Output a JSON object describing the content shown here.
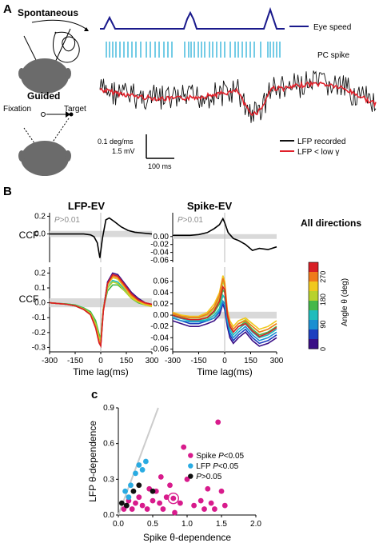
{
  "panel_labels": {
    "a": "A",
    "b": "B",
    "c": "c"
  },
  "panel_a": {
    "spontaneous_label": "Spontaneous",
    "guided_label": "Guided",
    "fixation_label": "Fixation",
    "target_label": "Target",
    "legend_eye_speed": "Eye speed",
    "legend_pc_spike": "PC spike",
    "legend_lfp_recorded": "LFP recorded",
    "legend_lfp_low": "LFP < low γ",
    "scale_speed": "0.1 deg/ms",
    "scale_voltage": "1.5 mV",
    "scale_time": "100 ms",
    "colors": {
      "eye_speed": "#1a1a8c",
      "pc_spike": "#2ab0d8",
      "lfp_recorded": "#111111",
      "lfp_low": "#e0202a"
    }
  },
  "panel_b": {
    "title_left": "LFP-EV",
    "title_right": "Spike-EV",
    "all_directions_label": "All directions",
    "p_label_italic": "P",
    "p_label_rest": ">0.01",
    "y_label": "CCF",
    "x_label": "Time lag(ms)",
    "colorbar_label": "Angle θ (deg)",
    "colorbar_ticks": [
      "0",
      "90",
      "180",
      "270"
    ],
    "colormap": [
      "#3a0f86",
      "#1d3fbf",
      "#1b8fd2",
      "#1fbcbc",
      "#44b84a",
      "#b8d22c",
      "#f0c81e",
      "#f07a1c",
      "#d81f26"
    ]
  },
  "panel_c": {
    "legend_spike_italic": "P",
    "legend_spike_prefix": "Spike ",
    "legend_spike_suffix": "<0.05",
    "legend_lfp_prefix": "LFP ",
    "legend_lfp_italic": "P",
    "legend_lfp_suffix": "<0.05",
    "legend_ns_italic": "P",
    "legend_ns_suffix": ">0.05",
    "colors": {
      "spike": "#d81b8c",
      "lfp": "#29abe2",
      "ns": "#111111",
      "diagonal": "#cccccc"
    }
  },
  "chart_data": [
    {
      "type": "line",
      "panel": "B-top-left",
      "x": [
        -300,
        -250,
        -200,
        -150,
        -100,
        -60,
        -40,
        -20,
        -5,
        10,
        30,
        50,
        80,
        120,
        160,
        200,
        250,
        300
      ],
      "series": [
        {
          "values": [
            0.0,
            0.0,
            0.0,
            0.0,
            0.0,
            -0.01,
            -0.03,
            -0.1,
            -0.27,
            -0.05,
            0.16,
            0.18,
            0.14,
            0.08,
            0.04,
            0.02,
            0.01,
            0.0
          ]
        }
      ],
      "title": "LFP-EV",
      "ylabel": "CCF",
      "yticks": [
        "0.2",
        "0.0"
      ],
      "ylim": [
        -0.32,
        0.24
      ],
      "xlim": [
        -300,
        300
      ]
    },
    {
      "type": "line",
      "panel": "B-top-right",
      "x": [
        -300,
        -250,
        -200,
        -150,
        -100,
        -60,
        -30,
        -10,
        0,
        20,
        50,
        80,
        120,
        160,
        200,
        250,
        300
      ],
      "series": [
        {
          "values": [
            0.003,
            0.003,
            0.003,
            0.005,
            0.01,
            0.02,
            0.03,
            0.045,
            0.035,
            0.01,
            -0.005,
            -0.01,
            -0.02,
            -0.035,
            -0.03,
            -0.033,
            -0.026
          ]
        }
      ],
      "title": "Spike-EV",
      "yticks": [
        "0.00",
        "-0.02",
        "-0.04",
        "-0.06"
      ],
      "ylim": [
        -0.065,
        0.06
      ],
      "xlim": [
        -300,
        300
      ]
    },
    {
      "type": "line",
      "panel": "B-bottom-left",
      "x": [
        -300,
        -250,
        -200,
        -150,
        -100,
        -60,
        -30,
        -10,
        0,
        15,
        40,
        70,
        100,
        140,
        180,
        220,
        260,
        300
      ],
      "series": [
        {
          "values": [
            0.0,
            -0.005,
            -0.01,
            -0.02,
            -0.04,
            -0.07,
            -0.15,
            -0.26,
            -0.29,
            -0.05,
            0.14,
            0.2,
            0.19,
            0.13,
            0.07,
            0.03,
            0.0,
            -0.01
          ]
        },
        {
          "values": [
            0.0,
            -0.005,
            -0.01,
            -0.02,
            -0.045,
            -0.08,
            -0.16,
            -0.25,
            -0.27,
            -0.05,
            0.13,
            0.19,
            0.18,
            0.12,
            0.06,
            0.02,
            -0.005,
            -0.015
          ]
        },
        {
          "values": [
            0.0,
            -0.005,
            -0.01,
            -0.02,
            -0.04,
            -0.07,
            -0.14,
            -0.24,
            -0.26,
            -0.04,
            0.12,
            0.17,
            0.16,
            0.11,
            0.05,
            0.015,
            -0.01,
            -0.02
          ]
        },
        {
          "values": [
            0.0,
            -0.004,
            -0.008,
            -0.015,
            -0.035,
            -0.06,
            -0.13,
            -0.22,
            -0.25,
            -0.04,
            0.1,
            0.15,
            0.14,
            0.09,
            0.04,
            0.01,
            -0.01,
            -0.02
          ]
        },
        {
          "values": [
            0.0,
            -0.004,
            -0.008,
            -0.015,
            -0.035,
            -0.06,
            -0.12,
            -0.21,
            -0.24,
            -0.04,
            0.08,
            0.12,
            0.12,
            0.08,
            0.03,
            0.0,
            -0.015,
            -0.02
          ]
        },
        {
          "values": [
            0.0,
            -0.005,
            -0.01,
            -0.02,
            -0.04,
            -0.07,
            -0.14,
            -0.23,
            -0.25,
            -0.04,
            0.1,
            0.14,
            0.13,
            0.08,
            0.03,
            0.005,
            -0.015,
            -0.025
          ]
        },
        {
          "values": [
            0.0,
            -0.005,
            -0.01,
            -0.02,
            -0.045,
            -0.08,
            -0.16,
            -0.25,
            -0.27,
            -0.05,
            0.12,
            0.17,
            0.16,
            0.1,
            0.04,
            0.01,
            -0.01,
            -0.02
          ]
        },
        {
          "values": [
            0.0,
            -0.005,
            -0.01,
            -0.02,
            -0.045,
            -0.08,
            -0.16,
            -0.26,
            -0.28,
            -0.05,
            0.13,
            0.18,
            0.17,
            0.11,
            0.05,
            0.015,
            -0.005,
            -0.015
          ]
        },
        {
          "values": [
            0.0,
            -0.005,
            -0.01,
            -0.02,
            -0.045,
            -0.08,
            -0.17,
            -0.27,
            -0.29,
            -0.06,
            0.13,
            0.19,
            0.18,
            0.12,
            0.06,
            0.02,
            0.0,
            -0.01
          ]
        }
      ],
      "ylabel": "CCF",
      "xlabel": "Time lag(ms)",
      "yticks": [
        "0.2",
        "0.1",
        "0.0",
        "-0.1",
        "-0.2",
        "-0.3"
      ],
      "xticks": [
        "-300",
        "-150",
        "0",
        "150",
        "300"
      ],
      "ylim": [
        -0.33,
        0.24
      ],
      "xlim": [
        -300,
        300
      ]
    },
    {
      "type": "line",
      "panel": "B-bottom-right",
      "x": [
        -300,
        -250,
        -200,
        -150,
        -100,
        -60,
        -30,
        -10,
        0,
        15,
        30,
        50,
        80,
        120,
        160,
        200,
        250,
        300
      ],
      "series": [
        {
          "values": [
            -0.01,
            -0.015,
            -0.02,
            -0.02,
            -0.015,
            -0.01,
            0.0,
            0.02,
            0.01,
            -0.02,
            -0.04,
            -0.05,
            -0.04,
            -0.03,
            -0.045,
            -0.055,
            -0.05,
            -0.04
          ]
        },
        {
          "values": [
            -0.005,
            -0.01,
            -0.015,
            -0.015,
            -0.01,
            -0.005,
            0.005,
            0.02,
            0.015,
            -0.015,
            -0.035,
            -0.045,
            -0.035,
            -0.025,
            -0.04,
            -0.05,
            -0.045,
            -0.035
          ]
        },
        {
          "values": [
            -0.005,
            -0.01,
            -0.012,
            -0.012,
            -0.01,
            -0.005,
            0.008,
            0.025,
            0.02,
            -0.01,
            -0.03,
            -0.04,
            -0.03,
            -0.02,
            -0.035,
            -0.045,
            -0.04,
            -0.03
          ]
        },
        {
          "values": [
            -0.002,
            -0.006,
            -0.01,
            -0.01,
            -0.008,
            0.0,
            0.012,
            0.035,
            0.03,
            -0.005,
            -0.025,
            -0.035,
            -0.025,
            -0.015,
            -0.03,
            -0.04,
            -0.035,
            -0.025
          ]
        },
        {
          "values": [
            0.0,
            -0.004,
            -0.008,
            -0.008,
            -0.005,
            0.005,
            0.02,
            0.045,
            0.04,
            0.0,
            -0.02,
            -0.03,
            -0.02,
            -0.012,
            -0.025,
            -0.035,
            -0.03,
            -0.02
          ]
        },
        {
          "values": [
            0.002,
            -0.002,
            -0.005,
            -0.005,
            0.0,
            0.012,
            0.03,
            0.06,
            0.05,
            0.005,
            -0.015,
            -0.025,
            -0.015,
            -0.008,
            -0.02,
            -0.03,
            -0.025,
            -0.015
          ]
        },
        {
          "values": [
            0.005,
            0.0,
            -0.002,
            -0.002,
            0.005,
            0.02,
            0.04,
            0.07,
            0.06,
            0.01,
            -0.01,
            -0.02,
            -0.01,
            -0.005,
            -0.015,
            -0.025,
            -0.02,
            -0.01
          ]
        },
        {
          "values": [
            0.003,
            -0.002,
            -0.004,
            -0.004,
            0.002,
            0.015,
            0.035,
            0.065,
            0.055,
            0.005,
            -0.015,
            -0.025,
            -0.015,
            -0.01,
            -0.02,
            -0.03,
            -0.025,
            -0.015
          ]
        },
        {
          "values": [
            0.0,
            -0.005,
            -0.008,
            -0.008,
            -0.004,
            0.008,
            0.025,
            0.05,
            0.045,
            0.0,
            -0.02,
            -0.03,
            -0.02,
            -0.015,
            -0.028,
            -0.038,
            -0.032,
            -0.022
          ]
        }
      ],
      "xlabel": "Time lag(ms)",
      "yticks": [
        "0.06",
        "0.04",
        "0.02",
        "0.00",
        "-0.02",
        "-0.04",
        "-0.06"
      ],
      "xticks": [
        "-300",
        "-150",
        "0",
        "150",
        "300"
      ],
      "ylim": [
        -0.065,
        0.085
      ],
      "xlim": [
        -300,
        300
      ]
    },
    {
      "type": "scatter",
      "panel": "C",
      "xlabel": "Spike θ-dependence",
      "ylabel": "LFP θ-dependence",
      "xlim": [
        0,
        2.0
      ],
      "ylim": [
        0,
        0.9
      ],
      "xticks": [
        "0.0",
        "0.5",
        "1.0",
        "1.5",
        "2.0"
      ],
      "yticks": [
        "0.0",
        "0.3",
        "0.6",
        "0.9"
      ],
      "series": [
        {
          "name": "Spike P<0.05",
          "points": [
            [
              0.08,
              0.05
            ],
            [
              0.12,
              0.08
            ],
            [
              0.15,
              0.12
            ],
            [
              0.2,
              0.05
            ],
            [
              0.25,
              0.1
            ],
            [
              0.3,
              0.15
            ],
            [
              0.35,
              0.08
            ],
            [
              0.42,
              0.05
            ],
            [
              0.5,
              0.12
            ],
            [
              0.55,
              0.2
            ],
            [
              0.6,
              0.1
            ],
            [
              0.65,
              0.05
            ],
            [
              0.7,
              0.15
            ],
            [
              0.75,
              0.25
            ],
            [
              0.8,
              0.14
            ],
            [
              0.82,
              0.02
            ],
            [
              0.9,
              0.1
            ],
            [
              0.95,
              0.57
            ],
            [
              1.0,
              0.3
            ],
            [
              1.1,
              0.08
            ],
            [
              1.2,
              0.12
            ],
            [
              1.3,
              0.22
            ],
            [
              1.35,
              0.1
            ],
            [
              1.4,
              0.05
            ],
            [
              1.45,
              0.78
            ],
            [
              1.5,
              0.2
            ],
            [
              1.55,
              0.08
            ],
            [
              1.25,
              0.05
            ],
            [
              0.45,
              0.22
            ],
            [
              0.62,
              0.32
            ]
          ]
        },
        {
          "name": "LFP P<0.05",
          "points": [
            [
              0.1,
              0.2
            ],
            [
              0.18,
              0.25
            ],
            [
              0.25,
              0.35
            ],
            [
              0.3,
              0.42
            ],
            [
              0.35,
              0.38
            ],
            [
              0.4,
              0.45
            ],
            [
              0.15,
              0.15
            ]
          ]
        },
        {
          "name": "P>0.05",
          "points": [
            [
              0.05,
              0.1
            ],
            [
              0.12,
              0.08
            ],
            [
              0.22,
              0.2
            ],
            [
              0.3,
              0.25
            ],
            [
              0.5,
              0.2
            ]
          ]
        }
      ],
      "highlight_point": [
        0.8,
        0.14
      ],
      "diagonal_line": true
    }
  ]
}
